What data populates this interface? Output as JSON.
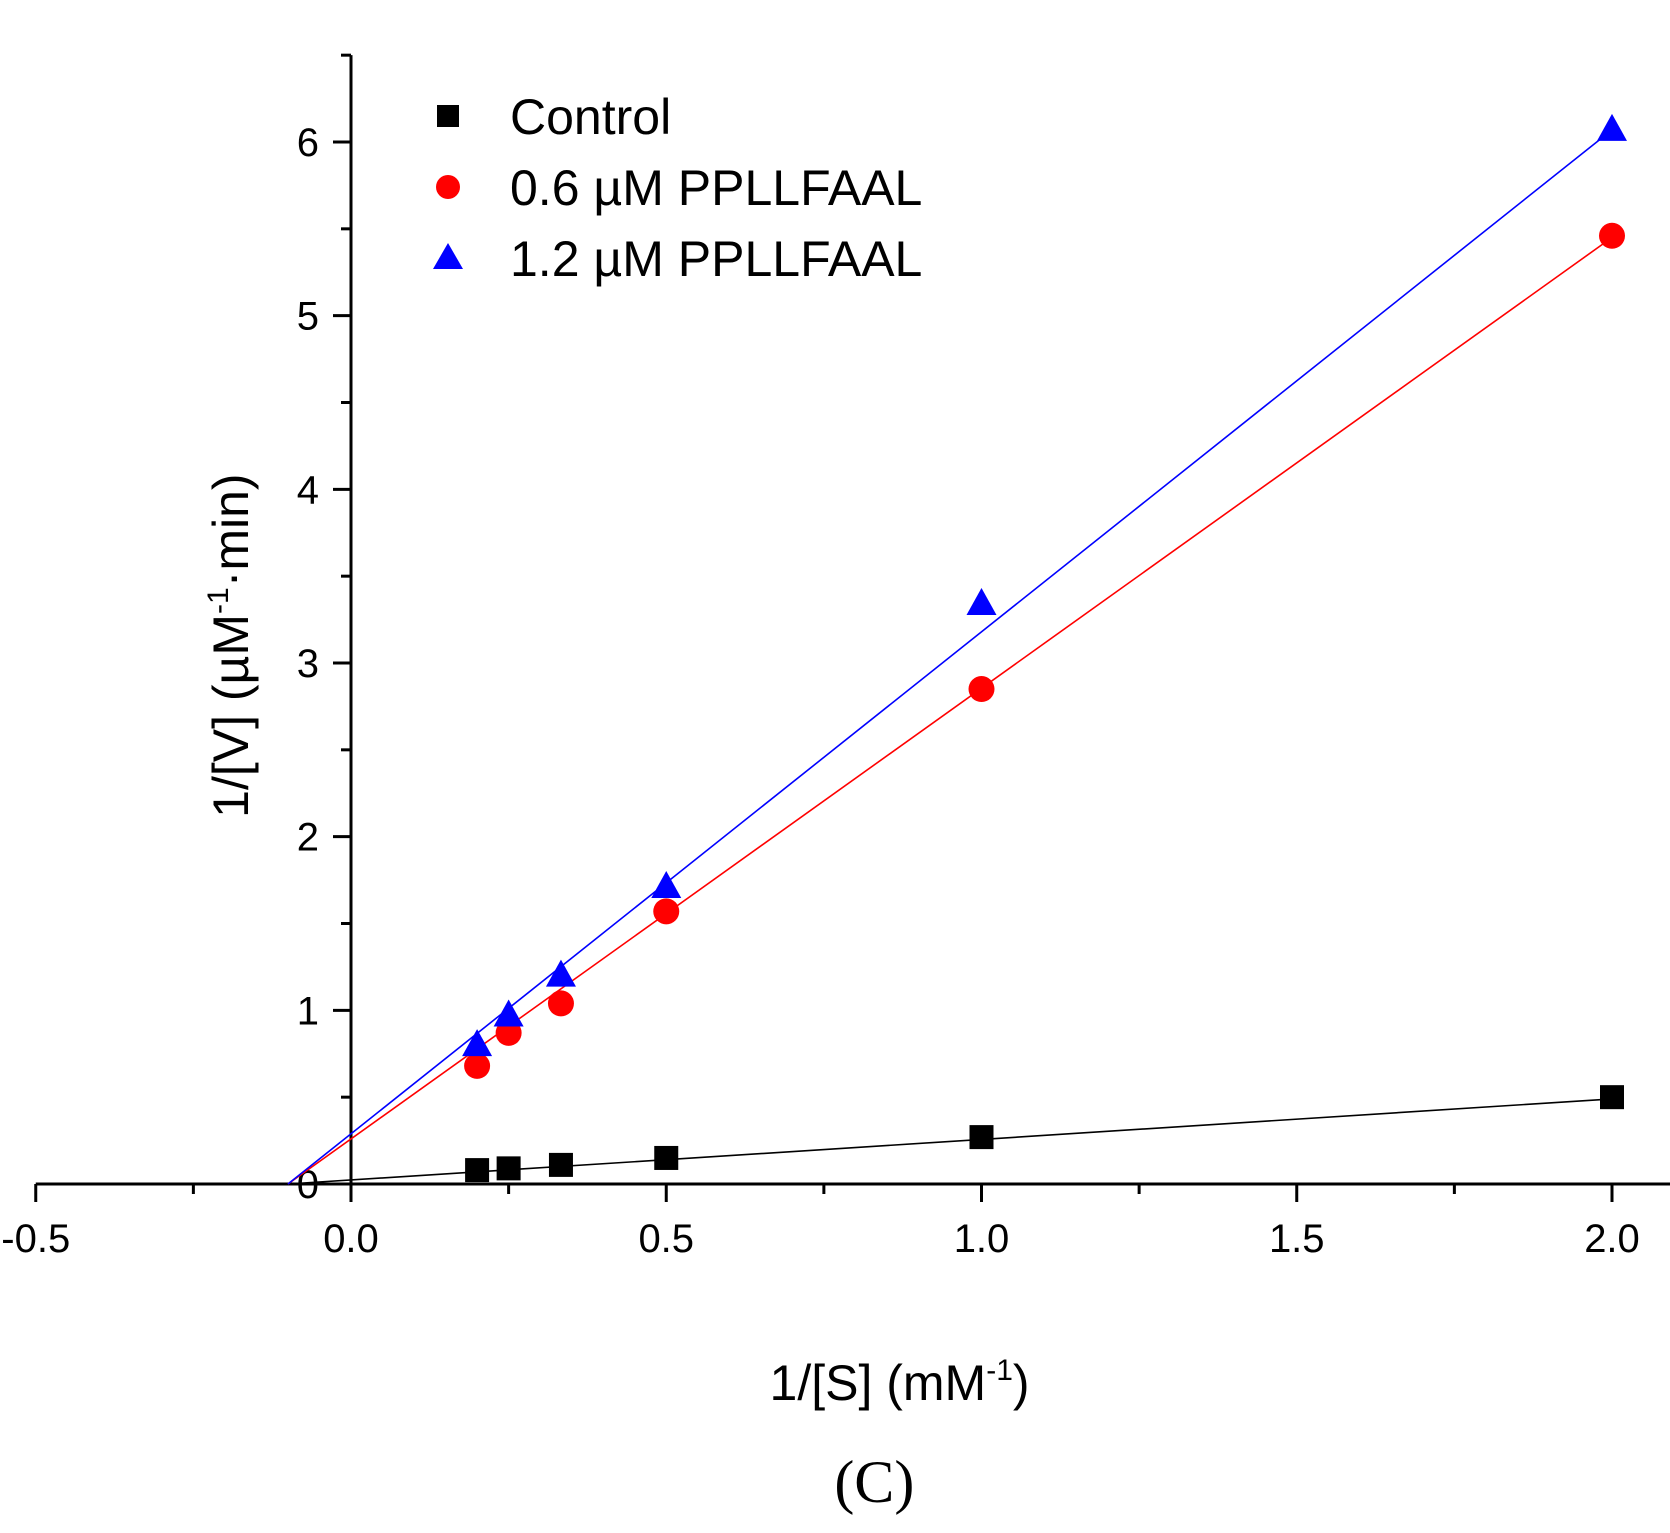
{
  "chart_data": {
    "type": "scatter",
    "x_axis": {
      "min": -0.5,
      "max": 2.25,
      "ticks": [
        "-0.5",
        "0.0",
        "0.5",
        "1.0",
        "1.5",
        "2.0"
      ],
      "label_main": "1/[S] (mM",
      "label_sup": "-1",
      "label_end": ")"
    },
    "y_axis": {
      "min": 0,
      "max": 6.5,
      "ticks": [
        "0",
        "1",
        "2",
        "3",
        "4",
        "5",
        "6"
      ],
      "label_main": "1/[V] (µM",
      "label_sup": "-1",
      "label_end": "·min)"
    },
    "legend_position": "top-left",
    "grid": false,
    "series": [
      {
        "name": "Control",
        "marker": "square",
        "color": "#000000",
        "x": [
          0.2,
          0.25,
          0.333,
          0.5,
          1.0,
          2.0
        ],
        "y": [
          0.08,
          0.09,
          0.11,
          0.15,
          0.27,
          0.5
        ],
        "fit": {
          "x": [
            -0.1,
            2.0
          ],
          "y": [
            0.0,
            0.49
          ]
        }
      },
      {
        "name": "0.6 µM PPLLFAAL",
        "marker": "circle",
        "color": "#ff0000",
        "x": [
          0.2,
          0.25,
          0.333,
          0.5,
          1.0,
          2.0
        ],
        "y": [
          0.68,
          0.87,
          1.04,
          1.57,
          2.85,
          5.46
        ],
        "fit": {
          "x": [
            -0.1,
            2.0
          ],
          "y": [
            0.0,
            5.45
          ]
        }
      },
      {
        "name": "1.2 µM PPLLFAAL",
        "marker": "triangle",
        "color": "#0000ff",
        "x": [
          0.2,
          0.25,
          0.333,
          0.5,
          1.0,
          2.0
        ],
        "y": [
          0.8,
          0.97,
          1.2,
          1.71,
          3.34,
          6.07
        ],
        "fit": {
          "x": [
            -0.1,
            2.0
          ],
          "y": [
            0.0,
            6.07
          ]
        }
      }
    ]
  },
  "panel_label": "(C)"
}
